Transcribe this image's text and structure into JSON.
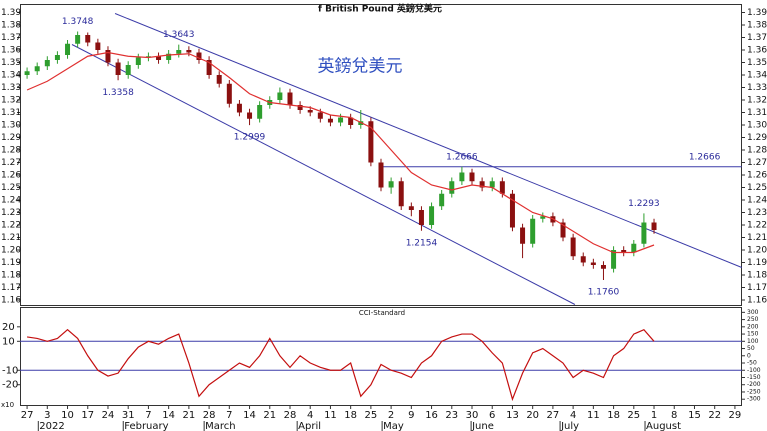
{
  "chart_data": [
    {
      "type": "candlestick",
      "title": "f British Pound 英鎊兌美元",
      "watermark": "英鎊兌美元",
      "x": [
        0,
        0.5,
        1,
        1.5,
        2,
        2.5,
        3,
        3.5,
        4,
        4.5,
        5,
        5.5,
        6,
        6.5,
        7,
        7.5,
        8,
        8.5,
        9,
        9.5,
        10,
        10.5,
        11,
        11.5,
        12,
        12.5,
        13,
        13.5,
        14,
        14.5,
        15,
        15.5,
        16,
        16.5,
        17,
        17.5,
        18,
        18.5,
        19,
        19.5,
        20,
        20.5,
        21,
        21.5,
        22,
        22.5,
        23,
        23.5,
        24,
        24.5,
        25,
        25.5,
        26,
        26.5,
        27,
        27.5,
        28,
        28.5,
        29,
        29.5,
        30,
        30.5,
        31
      ],
      "open": [
        1.34,
        1.343,
        1.347,
        1.352,
        1.356,
        1.365,
        1.372,
        1.366,
        1.36,
        1.35,
        1.34,
        1.348,
        1.354,
        1.355,
        1.352,
        1.357,
        1.36,
        1.358,
        1.352,
        1.34,
        1.333,
        1.317,
        1.31,
        1.305,
        1.316,
        1.32,
        1.326,
        1.316,
        1.312,
        1.31,
        1.305,
        1.302,
        1.306,
        1.3,
        1.303,
        1.27,
        1.25,
        1.255,
        1.235,
        1.232,
        1.22,
        1.235,
        1.245,
        1.255,
        1.262,
        1.255,
        1.25,
        1.255,
        1.245,
        1.218,
        1.205,
        1.225,
        1.227,
        1.222,
        1.21,
        1.195,
        1.19,
        1.188,
        1.185,
        1.2,
        1.198,
        1.205,
        1.222
      ],
      "high": [
        1.346,
        1.35,
        1.355,
        1.359,
        1.368,
        1.3748,
        1.374,
        1.369,
        1.363,
        1.353,
        1.351,
        1.357,
        1.358,
        1.358,
        1.36,
        1.3643,
        1.363,
        1.361,
        1.355,
        1.343,
        1.336,
        1.32,
        1.313,
        1.319,
        1.323,
        1.33,
        1.329,
        1.319,
        1.315,
        1.313,
        1.308,
        1.309,
        1.309,
        1.312,
        1.306,
        1.273,
        1.258,
        1.258,
        1.238,
        1.235,
        1.238,
        1.248,
        1.258,
        1.2666,
        1.265,
        1.258,
        1.258,
        1.258,
        1.248,
        1.221,
        1.228,
        1.23,
        1.23,
        1.225,
        1.213,
        1.198,
        1.193,
        1.191,
        1.203,
        1.203,
        1.208,
        1.2293,
        1.225
      ],
      "low": [
        1.337,
        1.34,
        1.344,
        1.349,
        1.353,
        1.362,
        1.363,
        1.357,
        1.347,
        1.3358,
        1.337,
        1.345,
        1.351,
        1.349,
        1.349,
        1.354,
        1.355,
        1.349,
        1.337,
        1.33,
        1.314,
        1.307,
        1.2999,
        1.302,
        1.313,
        1.317,
        1.313,
        1.309,
        1.307,
        1.302,
        1.299,
        1.299,
        1.297,
        1.297,
        1.267,
        1.247,
        1.245,
        1.232,
        1.227,
        1.2154,
        1.217,
        1.232,
        1.242,
        1.252,
        1.252,
        1.247,
        1.247,
        1.242,
        1.215,
        1.1935,
        1.202,
        1.222,
        1.219,
        1.207,
        1.192,
        1.187,
        1.185,
        1.176,
        1.182,
        1.195,
        1.195,
        1.202,
        1.213
      ],
      "close": [
        1.343,
        1.347,
        1.352,
        1.356,
        1.365,
        1.372,
        1.366,
        1.36,
        1.35,
        1.34,
        1.348,
        1.354,
        1.355,
        1.352,
        1.357,
        1.36,
        1.358,
        1.352,
        1.34,
        1.333,
        1.317,
        1.31,
        1.305,
        1.316,
        1.32,
        1.326,
        1.316,
        1.312,
        1.31,
        1.305,
        1.302,
        1.306,
        1.3,
        1.303,
        1.27,
        1.25,
        1.255,
        1.235,
        1.232,
        1.22,
        1.235,
        1.245,
        1.255,
        1.262,
        1.255,
        1.25,
        1.255,
        1.245,
        1.218,
        1.205,
        1.225,
        1.227,
        1.222,
        1.21,
        1.195,
        1.19,
        1.188,
        1.185,
        1.2,
        1.198,
        1.205,
        1.222,
        1.216
      ],
      "up_color": "#2e9e2e",
      "down_color": "#8b1010",
      "ma": {
        "color": "#e03030",
        "x": [
          0,
          1,
          2,
          3,
          4,
          5,
          6,
          7,
          8,
          9,
          10,
          11,
          12,
          13,
          14,
          15,
          16,
          17,
          18,
          19,
          20,
          21,
          22,
          23,
          24,
          25,
          26,
          27,
          28,
          29,
          30,
          31
        ],
        "values": [
          1.328,
          1.335,
          1.345,
          1.355,
          1.358,
          1.355,
          1.354,
          1.356,
          1.357,
          1.35,
          1.338,
          1.325,
          1.318,
          1.316,
          1.314,
          1.308,
          1.306,
          1.298,
          1.28,
          1.262,
          1.252,
          1.248,
          1.252,
          1.25,
          1.24,
          1.23,
          1.225,
          1.215,
          1.205,
          1.198,
          1.198,
          1.204
        ]
      },
      "trendline_color": "#3c3ca8",
      "trendlines": [
        {
          "x": [
            4.35,
            35.34
          ],
          "y": [
            1.3892,
            1.186
          ]
        },
        {
          "x": [
            2.22,
            27.09
          ],
          "y": [
            1.3644,
            1.1564
          ]
        },
        {
          "x": [
            17.45,
            35.34
          ],
          "y": [
            1.2666,
            1.2666
          ]
        }
      ],
      "annotation_color": "#2a2a9a",
      "annotations": [
        {
          "x": 2.5,
          "value": 1.3748,
          "position": "above"
        },
        {
          "x": 7.5,
          "value": 1.3643,
          "position": "above"
        },
        {
          "x": 4.5,
          "value": 1.3358,
          "position": "below"
        },
        {
          "x": 11,
          "value": 1.2999,
          "position": "below"
        },
        {
          "x": 21.5,
          "value": 1.2666,
          "position": "above"
        },
        {
          "x": 19.5,
          "value": 1.2154,
          "position": "below"
        },
        {
          "x": 28.5,
          "value": 1.176,
          "label": "1.1760",
          "position": "below"
        },
        {
          "x": 30.5,
          "value": 1.2293,
          "position": "above"
        },
        {
          "x": 33.5,
          "value": 1.2666,
          "position": "above"
        }
      ],
      "xlim": [
        -0.35,
        35.35
      ],
      "ylim": [
        1.156,
        1.396
      ],
      "yticks": [
        1.16,
        1.17,
        1.18,
        1.19,
        {
          "value": 1.2,
          "label": "1.20"
        },
        1.21,
        1.22,
        1.23,
        1.24,
        1.25,
        1.26,
        1.27,
        1.28,
        1.29,
        {
          "value": 1.3,
          "label": "1.30"
        },
        1.31,
        1.32,
        1.33,
        1.34,
        1.35,
        1.36,
        1.37,
        1.38,
        1.39
      ]
    },
    {
      "type": "line",
      "title": "CCI-Standard",
      "scale_label": "x10",
      "color": "#c41010",
      "x": [
        0,
        0.5,
        1,
        1.5,
        2,
        2.5,
        3,
        3.5,
        4,
        4.5,
        5,
        5.5,
        6,
        6.5,
        7,
        7.5,
        8,
        8.5,
        9,
        9.5,
        10,
        10.5,
        11,
        11.5,
        12,
        12.5,
        13,
        13.5,
        14,
        14.5,
        15,
        15.5,
        16,
        16.5,
        17,
        17.5,
        18,
        18.5,
        19,
        19.5,
        20,
        20.5,
        21,
        21.5,
        22,
        22.5,
        23,
        23.5,
        24,
        24.5,
        25,
        25.5,
        26,
        26.5,
        27,
        27.5,
        28,
        28.5,
        29,
        29.5,
        30,
        30.5,
        31
      ],
      "values": [
        13,
        12,
        10,
        12,
        18,
        12,
        0,
        -10,
        -14,
        -12,
        -2,
        6,
        10,
        8,
        12,
        15,
        -5,
        -28,
        -20,
        -15,
        -10,
        -5,
        -8,
        0,
        12,
        0,
        -8,
        0,
        -5,
        -8,
        -10,
        -10,
        -5,
        -28,
        -20,
        -6,
        -10,
        -12,
        -15,
        -5,
        0,
        10,
        13,
        15,
        15,
        10,
        2,
        -5,
        -30,
        -12,
        2,
        5,
        0,
        -5,
        -15,
        -10,
        -12,
        -15,
        0,
        5,
        15,
        18,
        10
      ],
      "hlines": [
        10,
        -10
      ],
      "hline_color": "#3c3ca8",
      "xlim": [
        -0.35,
        35.35
      ],
      "ylim": [
        -34,
        33
      ],
      "yticks": [
        20,
        10,
        -10,
        -20
      ],
      "y2lim": [
        -340,
        330
      ],
      "y2ticks": [
        300,
        250,
        200,
        150,
        100,
        50,
        0,
        -50,
        -100,
        -150,
        -200,
        -250,
        -300
      ],
      "xticks": [
        {
          "value": 0,
          "label": "27"
        },
        {
          "value": 1,
          "label": "3"
        },
        {
          "value": 2,
          "label": "10"
        },
        {
          "value": 3,
          "label": "17"
        },
        {
          "value": 4,
          "label": "24"
        },
        {
          "value": 5,
          "label": "31"
        },
        {
          "value": 6,
          "label": "7"
        },
        {
          "value": 7,
          "label": "14"
        },
        {
          "value": 8,
          "label": "21"
        },
        {
          "value": 9,
          "label": "28"
        },
        {
          "value": 10,
          "label": "7"
        },
        {
          "value": 11,
          "label": "14"
        },
        {
          "value": 12,
          "label": "21"
        },
        {
          "value": 13,
          "label": "28"
        },
        {
          "value": 14,
          "label": "4"
        },
        {
          "value": 15,
          "label": "11"
        },
        {
          "value": 16,
          "label": "18"
        },
        {
          "value": 17,
          "label": "25"
        },
        {
          "value": 18,
          "label": "2"
        },
        {
          "value": 19,
          "label": "9"
        },
        {
          "value": 20,
          "label": "16"
        },
        {
          "value": 21,
          "label": "23"
        },
        {
          "value": 22,
          "label": "30"
        },
        {
          "value": 23,
          "label": "6"
        },
        {
          "value": 24,
          "label": "13"
        },
        {
          "value": 25,
          "label": "20"
        },
        {
          "value": 26,
          "label": "27"
        },
        {
          "value": 27,
          "label": "4"
        },
        {
          "value": 28,
          "label": "11"
        },
        {
          "value": 29,
          "label": "18"
        },
        {
          "value": 30,
          "label": "25"
        },
        {
          "value": 31,
          "label": "1"
        },
        {
          "value": 32,
          "label": "8"
        },
        {
          "value": 33,
          "label": "15"
        },
        {
          "value": 34,
          "label": "22"
        },
        {
          "value": 35,
          "label": "29"
        }
      ],
      "months": [
        {
          "value": 1.0,
          "label": "2022"
        },
        {
          "value": 5.2,
          "label": "February"
        },
        {
          "value": 9.2,
          "label": "March"
        },
        {
          "value": 13.8,
          "label": "April"
        },
        {
          "value": 18.0,
          "label": "May"
        },
        {
          "value": 22.4,
          "label": "June"
        },
        {
          "value": 26.8,
          "label": "July"
        },
        {
          "value": 31.0,
          "label": "August"
        }
      ]
    }
  ]
}
